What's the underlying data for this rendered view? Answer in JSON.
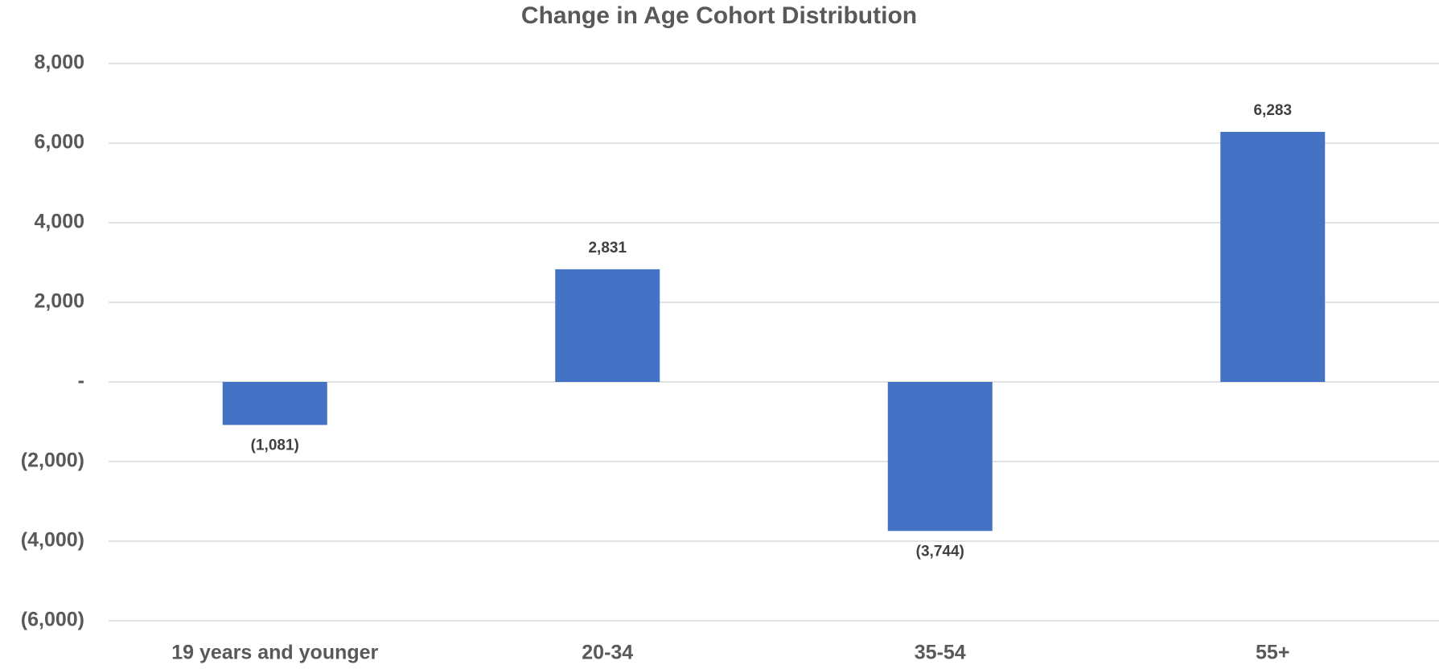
{
  "chart_data": {
    "type": "bar",
    "title": "Change in Age Cohort Distribution",
    "categories": [
      "19 years and younger",
      "20-34",
      "35-54",
      "55+"
    ],
    "values": [
      -1081,
      2831,
      -3744,
      6283
    ],
    "value_labels": [
      "(1,081)",
      "2,831",
      "(3,744)",
      "6,283"
    ],
    "color": "#4472c4",
    "ylim": [
      -6000,
      8000
    ],
    "yticks": [
      {
        "value": -6000,
        "label": "(6,000)"
      },
      {
        "value": -4000,
        "label": "(4,000)"
      },
      {
        "value": -2000,
        "label": "(2,000)"
      },
      {
        "value": 0,
        "label": "-"
      },
      {
        "value": 2000,
        "label": "2,000"
      },
      {
        "value": 4000,
        "label": "4,000"
      },
      {
        "value": 6000,
        "label": "6,000"
      },
      {
        "value": 8000,
        "label": "8,000"
      }
    ],
    "grid": true
  }
}
